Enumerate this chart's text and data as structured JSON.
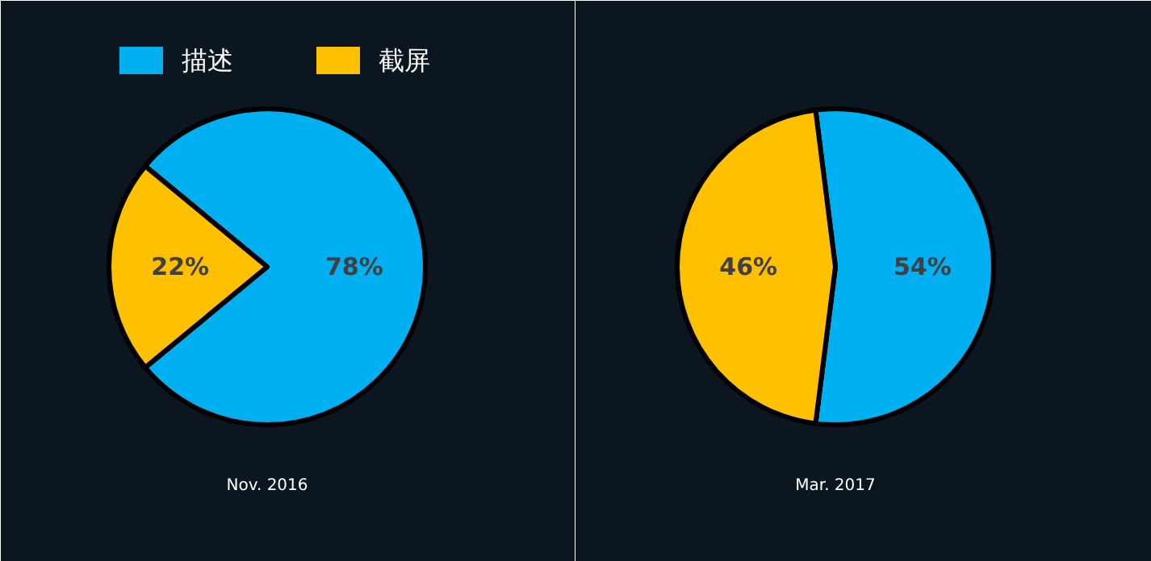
{
  "chart_data": [
    {
      "type": "pie",
      "categories": [
        "描述",
        "截屏"
      ],
      "values": [
        78,
        22
      ],
      "colors": [
        "#00b0f0",
        "#ffc000"
      ],
      "xlabel": "Nov. 2016",
      "value_labels": [
        "78%",
        "22%"
      ],
      "legend": "top left"
    },
    {
      "type": "pie",
      "categories": [
        null,
        null
      ],
      "values": [
        54,
        46
      ],
      "colors": [
        "#00b0f0",
        "#ffc000"
      ],
      "xlabel": "Mar. 2017",
      "value_labels": [
        "54%",
        "46%"
      ]
    }
  ]
}
